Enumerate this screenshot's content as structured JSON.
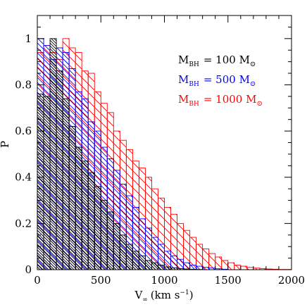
{
  "chart_data": {
    "type": "bar",
    "subtype": "step-histogram",
    "xlabel": "V",
    "xlabel_subscript": "∞",
    "xlabel_units": "(km s",
    "xlabel_units_exp": "−1",
    "xlabel_units_close": ")",
    "ylabel": "P",
    "xlim": [
      0,
      2000
    ],
    "ylim": [
      0,
      1.1
    ],
    "x_ticks": [
      0,
      500,
      1000,
      1500,
      2000
    ],
    "x_tick_labels": [
      "0",
      "500",
      "1000",
      "1500",
      "2000"
    ],
    "y_ticks": [
      0,
      0.2,
      0.4,
      0.6,
      0.8,
      1
    ],
    "y_tick_labels": [
      "0",
      "0.2",
      "0.4",
      "0.6",
      "0.8",
      "1"
    ],
    "grid": false,
    "legend_position": "top-right",
    "bin_width": 50,
    "series": [
      {
        "name": "100",
        "legend_label": "M",
        "legend_sub": "BH",
        "legend_eq": "= 100 M",
        "legend_sun": "⊙",
        "color": "#000000",
        "hatch": "dense",
        "values": [
          0.76,
          0.75,
          1.0,
          0.86,
          0.74,
          0.62,
          0.53,
          0.47,
          0.42,
          0.36,
          0.3,
          0.25,
          0.2,
          0.15,
          0.11,
          0.08,
          0.06,
          0.04,
          0.03,
          0.02,
          0.012,
          0.008,
          0.005,
          0.003,
          0.002,
          0.001,
          0,
          0,
          0,
          0,
          0,
          0,
          0,
          0,
          0,
          0,
          0,
          0,
          0,
          0
        ]
      },
      {
        "name": "500",
        "legend_label": "M",
        "legend_sub": "BH",
        "legend_eq": "= 500 M",
        "legend_sun": "⊙",
        "color": "#0000ff",
        "hatch": "medium",
        "values": [
          1.0,
          0.97,
          0.91,
          0.96,
          0.94,
          0.87,
          0.77,
          0.74,
          0.64,
          0.6,
          0.53,
          0.48,
          0.43,
          0.37,
          0.32,
          0.27,
          0.22,
          0.18,
          0.14,
          0.11,
          0.08,
          0.06,
          0.045,
          0.03,
          0.02,
          0.015,
          0.01,
          0.007,
          0.004,
          0.002,
          0,
          0,
          0,
          0,
          0,
          0,
          0,
          0,
          0,
          0
        ]
      },
      {
        "name": "1000",
        "legend_label": "M",
        "legend_sub": "BH",
        "legend_eq": "= 1000 M",
        "legend_sun": "⊙",
        "color": "#ff0000",
        "hatch": "sparse",
        "values": [
          0.94,
          0.97,
          0.94,
          0.91,
          1.0,
          0.96,
          0.94,
          0.86,
          0.85,
          0.77,
          0.72,
          0.68,
          0.6,
          0.56,
          0.52,
          0.47,
          0.44,
          0.4,
          0.35,
          0.31,
          0.27,
          0.24,
          0.2,
          0.17,
          0.14,
          0.11,
          0.09,
          0.07,
          0.055,
          0.04,
          0.03,
          0.02,
          0.015,
          0.01,
          0.007,
          0.005,
          0.003,
          0.002,
          0.001,
          0.001
        ]
      }
    ]
  }
}
